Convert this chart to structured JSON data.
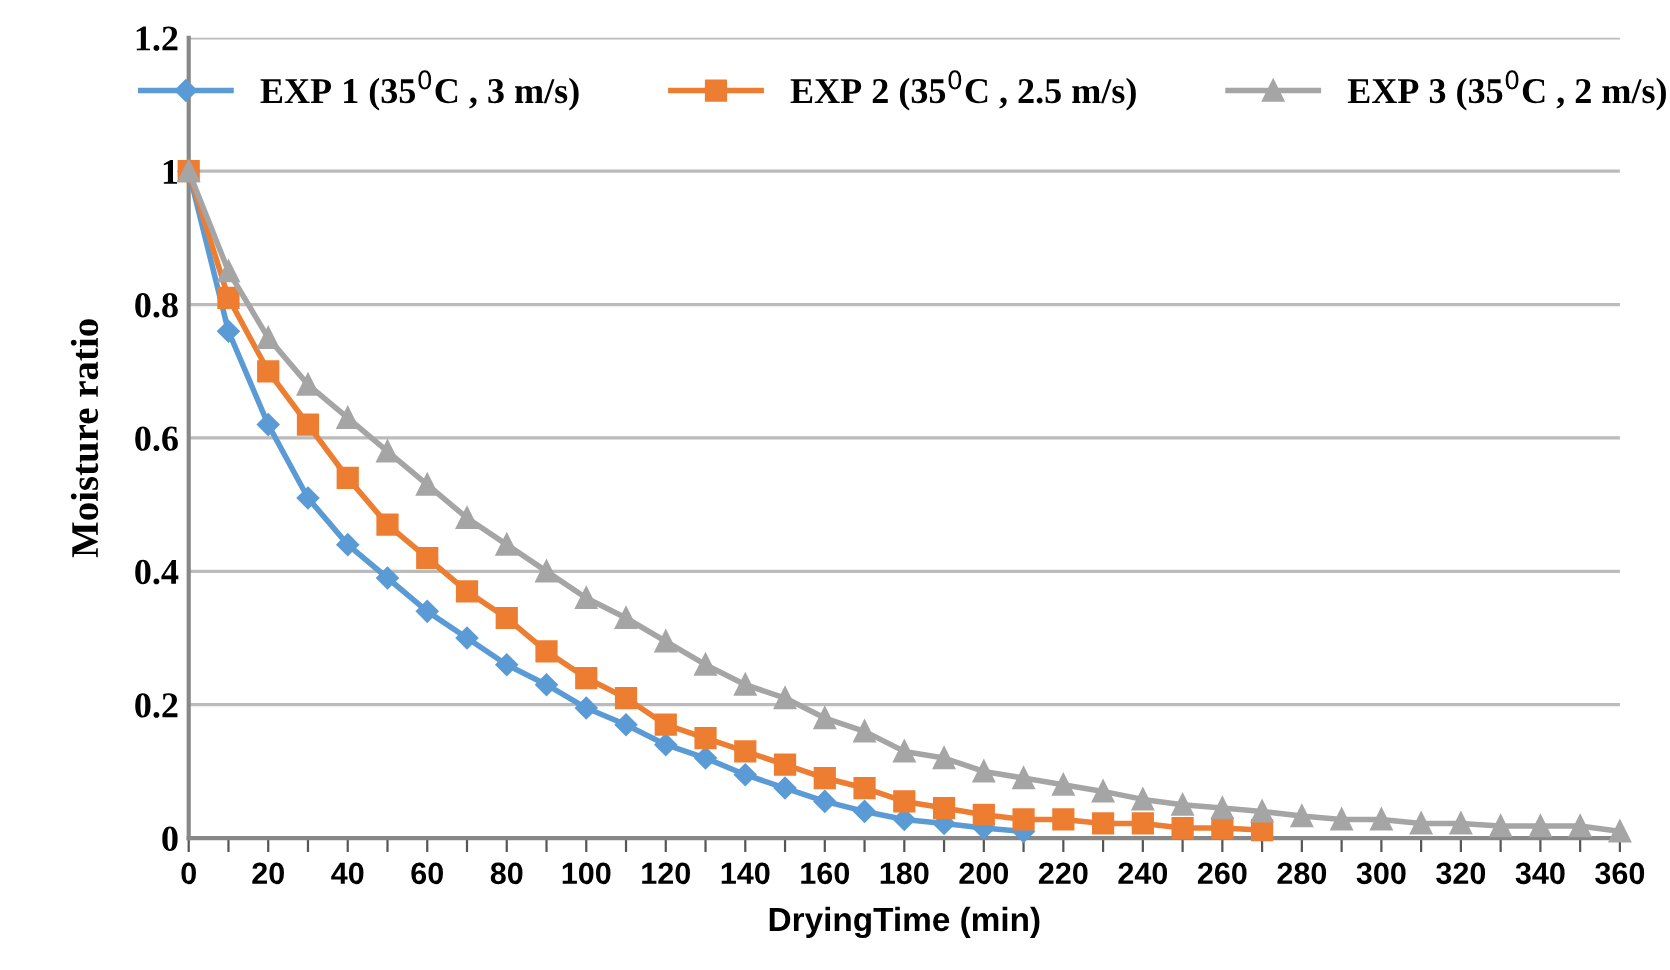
{
  "chart_data": {
    "type": "line",
    "xlabel": "DryingTime (min)",
    "ylabel": "Moisture ratio",
    "xlim": [
      0,
      360
    ],
    "ylim": [
      0,
      1.2
    ],
    "xticks": [
      0,
      {
        "value": 10,
        "label": null
      },
      20,
      {
        "value": 30,
        "label": null
      },
      40,
      {
        "value": 50,
        "label": null
      },
      60,
      {
        "value": 70,
        "label": null
      },
      80,
      {
        "value": 90,
        "label": null
      },
      100,
      {
        "value": 110,
        "label": null
      },
      120,
      {
        "value": 130,
        "label": null
      },
      140,
      {
        "value": 150,
        "label": null
      },
      160,
      {
        "value": 170,
        "label": null
      },
      180,
      {
        "value": 190,
        "label": null
      },
      200,
      {
        "value": 210,
        "label": null
      },
      220,
      {
        "value": 230,
        "label": null
      },
      240,
      {
        "value": 250,
        "label": null
      },
      260,
      {
        "value": 270,
        "label": null
      },
      280,
      {
        "value": 290,
        "label": null
      },
      300,
      {
        "value": 310,
        "label": null
      },
      320,
      {
        "value": 330,
        "label": null
      },
      340,
      {
        "value": 350,
        "label": null
      },
      360
    ],
    "yticks": [
      0,
      0.2,
      0.4,
      0.6,
      0.8,
      1,
      1.2
    ],
    "grid": "y",
    "legend": "top",
    "line_style": "solid",
    "series": [
      {
        "name": "EXP 1 (35$^{0}$C , 3 m/s)",
        "color": "#5b9bd5",
        "marker": "diamond",
        "x": [
          0,
          10,
          20,
          30,
          40,
          50,
          60,
          70,
          80,
          90,
          100,
          110,
          120,
          130,
          140,
          150,
          160,
          170,
          180,
          190,
          200,
          210
        ],
        "values": [
          1,
          0.76,
          0.62,
          0.51,
          0.44,
          0.39,
          0.34,
          0.3,
          0.26,
          0.23,
          0.195,
          0.17,
          0.14,
          0.12,
          0.095,
          0.075,
          0.055,
          0.04,
          0.028,
          0.022,
          0.015,
          0.01
        ]
      },
      {
        "name": "EXP 2 (35$^{0}$C , 2.5 m/s)",
        "color": "#ed7d31",
        "marker": "square",
        "x": [
          0,
          10,
          20,
          30,
          40,
          50,
          60,
          70,
          80,
          90,
          100,
          110,
          120,
          130,
          140,
          150,
          160,
          170,
          180,
          190,
          200,
          210,
          220,
          230,
          240,
          250,
          260,
          270
        ],
        "values": [
          1,
          0.81,
          0.7,
          0.62,
          0.54,
          0.47,
          0.42,
          0.37,
          0.33,
          0.28,
          0.24,
          0.21,
          0.17,
          0.15,
          0.13,
          0.11,
          0.09,
          0.075,
          0.055,
          0.045,
          0.035,
          0.028,
          0.028,
          0.022,
          0.022,
          0.015,
          0.015,
          0.012
        ]
      },
      {
        "name": "EXP 3 (35$^{0}$C , 2 m/s)",
        "color": "#a5a5a5",
        "marker": "triangle",
        "x": [
          0,
          10,
          20,
          30,
          40,
          50,
          60,
          70,
          80,
          90,
          100,
          110,
          120,
          130,
          140,
          150,
          160,
          170,
          180,
          190,
          200,
          210,
          220,
          230,
          240,
          250,
          260,
          270,
          280,
          290,
          300,
          310,
          320,
          330,
          340,
          350,
          360
        ],
        "values": [
          1,
          0.85,
          0.75,
          0.68,
          0.63,
          0.58,
          0.53,
          0.48,
          0.44,
          0.4,
          0.36,
          0.33,
          0.295,
          0.26,
          0.23,
          0.21,
          0.18,
          0.16,
          0.13,
          0.12,
          0.1,
          0.09,
          0.08,
          0.07,
          0.058,
          0.05,
          0.045,
          0.04,
          0.033,
          0.028,
          0.028,
          0.022,
          0.022,
          0.018,
          0.018,
          0.018,
          0.01
        ]
      }
    ]
  }
}
